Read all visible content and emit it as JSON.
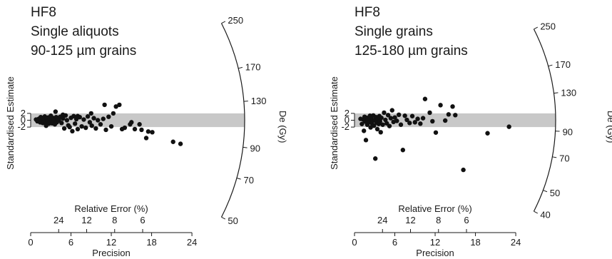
{
  "colors": {
    "band": "#c8c8c8",
    "points": "#111111",
    "axes": "#1a1a1a",
    "background": "#ffffff"
  },
  "chart_data": [
    {
      "type": "scatter",
      "subtype": "radial-plot",
      "title_lines": [
        "HF8",
        "Single aliquots",
        "90-125 µm grains"
      ],
      "ylabel": "Standardised Estimate",
      "ytick_labels": [
        "2",
        "0",
        "-2"
      ],
      "xlabel": "Precision",
      "x_ticks": [
        0,
        6,
        12,
        18,
        24
      ],
      "xlim": [
        0,
        24
      ],
      "rel_error_label": "Relative Error (%)",
      "rel_error_ticks": [
        24,
        12,
        8,
        6
      ],
      "arc_label": "De (Gy)",
      "arc_ticks": [
        50,
        70,
        90,
        130,
        170,
        250
      ],
      "arc_range": [
        50,
        250
      ],
      "band": [
        -2,
        2
      ],
      "grid": false,
      "points": [
        {
          "x": 0.8,
          "y": 0.2
        },
        {
          "x": 1.0,
          "y": -0.3
        },
        {
          "x": 1.2,
          "y": 0.4
        },
        {
          "x": 1.4,
          "y": -0.6
        },
        {
          "x": 1.5,
          "y": 0.9
        },
        {
          "x": 1.6,
          "y": -0.1
        },
        {
          "x": 1.7,
          "y": 0.3
        },
        {
          "x": 1.8,
          "y": -0.8
        },
        {
          "x": 1.9,
          "y": 0.6
        },
        {
          "x": 2.0,
          "y": -0.4
        },
        {
          "x": 2.1,
          "y": 1.1
        },
        {
          "x": 2.2,
          "y": 0.1
        },
        {
          "x": 2.3,
          "y": -0.7
        },
        {
          "x": 2.4,
          "y": 0.5
        },
        {
          "x": 2.5,
          "y": -0.2
        },
        {
          "x": 2.6,
          "y": 0.8
        },
        {
          "x": 2.7,
          "y": -1.0
        },
        {
          "x": 2.8,
          "y": 0.3
        },
        {
          "x": 2.9,
          "y": -0.5
        },
        {
          "x": 3.0,
          "y": 1.3
        },
        {
          "x": 3.1,
          "y": 0.0
        },
        {
          "x": 3.2,
          "y": -0.9
        },
        {
          "x": 3.3,
          "y": 0.7
        },
        {
          "x": 3.4,
          "y": -0.3
        },
        {
          "x": 3.5,
          "y": 0.2
        },
        {
          "x": 3.6,
          "y": -1.2
        },
        {
          "x": 3.7,
          "y": 2.5
        },
        {
          "x": 3.8,
          "y": 0.9
        },
        {
          "x": 3.9,
          "y": -0.6
        },
        {
          "x": 4.0,
          "y": 0.4
        },
        {
          "x": 4.2,
          "y": -0.1
        },
        {
          "x": 4.4,
          "y": 1.0
        },
        {
          "x": 4.6,
          "y": -0.8
        },
        {
          "x": 4.8,
          "y": 0.5
        },
        {
          "x": 5.0,
          "y": -2.4
        },
        {
          "x": 5.2,
          "y": 1.4
        },
        {
          "x": 5.4,
          "y": 0.0
        },
        {
          "x": 5.6,
          "y": -1.5
        },
        {
          "x": 5.8,
          "y": -2.0
        },
        {
          "x": 6.0,
          "y": 0.7
        },
        {
          "x": 6.2,
          "y": -3.2
        },
        {
          "x": 6.4,
          "y": 1.2
        },
        {
          "x": 6.6,
          "y": -1.0
        },
        {
          "x": 6.8,
          "y": 0.3
        },
        {
          "x": 7.0,
          "y": -2.6
        },
        {
          "x": 7.3,
          "y": 0.9
        },
        {
          "x": 7.6,
          "y": -1.8
        },
        {
          "x": 7.9,
          "y": 0.2
        },
        {
          "x": 8.2,
          "y": -2.2
        },
        {
          "x": 8.5,
          "y": 1.1
        },
        {
          "x": 8.8,
          "y": -0.6
        },
        {
          "x": 9.1,
          "y": -1.6
        },
        {
          "x": 9.4,
          "y": 0.6
        },
        {
          "x": 9.7,
          "y": -2.4
        },
        {
          "x": 10.0,
          "y": 0.0
        },
        {
          "x": 10.4,
          "y": -1.2
        },
        {
          "x": 10.8,
          "y": 0.4
        },
        {
          "x": 11.2,
          "y": -2.8
        },
        {
          "x": 11.6,
          "y": 1.0
        },
        {
          "x": 12.0,
          "y": -1.8
        },
        {
          "x": 11.0,
          "y": 4.5
        },
        {
          "x": 12.7,
          "y": 4.0
        },
        {
          "x": 13.2,
          "y": 4.5
        },
        {
          "x": 12.3,
          "y": 2.0
        },
        {
          "x": 13.6,
          "y": -2.6
        },
        {
          "x": 14.0,
          "y": -2.2
        },
        {
          "x": 14.8,
          "y": -1.2
        },
        {
          "x": 15.0,
          "y": -0.6
        },
        {
          "x": 15.5,
          "y": -2.6
        },
        {
          "x": 16.2,
          "y": -1.2
        },
        {
          "x": 16.5,
          "y": -2.8
        },
        {
          "x": 17.5,
          "y": -3.3
        },
        {
          "x": 18.1,
          "y": -3.5
        },
        {
          "x": 17.2,
          "y": -5.2
        },
        {
          "x": 21.2,
          "y": -6.3
        },
        {
          "x": 22.3,
          "y": -6.9
        },
        {
          "x": 9.0,
          "y": 2.0
        },
        {
          "x": 7.0,
          "y": 1.2
        },
        {
          "x": 4.8,
          "y": 1.6
        },
        {
          "x": 2.3,
          "y": -1.6
        }
      ]
    },
    {
      "type": "scatter",
      "subtype": "radial-plot",
      "title_lines": [
        "HF8",
        "Single grains",
        "125-180 µm grains"
      ],
      "ylabel": "Standardised Estimate",
      "ytick_labels": [
        "2",
        "0",
        "-2"
      ],
      "xlabel": "Precision",
      "x_ticks": [
        0,
        6,
        12,
        18,
        24
      ],
      "xlim": [
        0,
        24
      ],
      "rel_error_label": "Relative Error (%)",
      "rel_error_ticks": [
        24,
        12,
        8,
        6
      ],
      "arc_label": "De (Gy)",
      "arc_ticks": [
        40,
        50,
        70,
        90,
        130,
        170,
        250
      ],
      "arc_range": [
        40,
        250
      ],
      "band": [
        -2,
        2
      ],
      "grid": false,
      "points": [
        {
          "x": 0.9,
          "y": 0.4
        },
        {
          "x": 1.1,
          "y": -1.1
        },
        {
          "x": 1.3,
          "y": 0.2
        },
        {
          "x": 1.4,
          "y": -3.1
        },
        {
          "x": 1.5,
          "y": 1.0
        },
        {
          "x": 1.6,
          "y": -0.4
        },
        {
          "x": 1.7,
          "y": -5.8
        },
        {
          "x": 1.8,
          "y": 0.7
        },
        {
          "x": 1.9,
          "y": -1.3
        },
        {
          "x": 2.0,
          "y": 0.2
        },
        {
          "x": 2.2,
          "y": -0.6
        },
        {
          "x": 2.3,
          "y": 1.3
        },
        {
          "x": 2.4,
          "y": -2.1
        },
        {
          "x": 2.5,
          "y": 0.5
        },
        {
          "x": 2.6,
          "y": -0.9
        },
        {
          "x": 2.7,
          "y": -0.2
        },
        {
          "x": 2.8,
          "y": 1.4
        },
        {
          "x": 2.9,
          "y": -1.6
        },
        {
          "x": 3.0,
          "y": 0.1
        },
        {
          "x": 3.1,
          "y": -11.2
        },
        {
          "x": 3.2,
          "y": 0.9
        },
        {
          "x": 3.3,
          "y": -0.7
        },
        {
          "x": 3.4,
          "y": -2.6
        },
        {
          "x": 3.5,
          "y": 0.4
        },
        {
          "x": 3.6,
          "y": -1.1
        },
        {
          "x": 3.7,
          "y": 1.2
        },
        {
          "x": 3.8,
          "y": -0.3
        },
        {
          "x": 3.9,
          "y": -3.5
        },
        {
          "x": 4.0,
          "y": 0.7
        },
        {
          "x": 4.2,
          "y": -1.3
        },
        {
          "x": 4.4,
          "y": 2.2
        },
        {
          "x": 4.6,
          "y": 0.1
        },
        {
          "x": 4.8,
          "y": -0.9
        },
        {
          "x": 5.0,
          "y": 1.5
        },
        {
          "x": 5.2,
          "y": -1.7
        },
        {
          "x": 5.4,
          "y": 0.6
        },
        {
          "x": 5.6,
          "y": 2.9
        },
        {
          "x": 5.8,
          "y": -0.5
        },
        {
          "x": 6.0,
          "y": 0.8
        },
        {
          "x": 6.3,
          "y": -0.2
        },
        {
          "x": 6.6,
          "y": 1.6
        },
        {
          "x": 6.9,
          "y": -1.3
        },
        {
          "x": 7.2,
          "y": -8.7
        },
        {
          "x": 7.5,
          "y": 1.3
        },
        {
          "x": 7.8,
          "y": 0.1
        },
        {
          "x": 8.2,
          "y": -0.8
        },
        {
          "x": 8.6,
          "y": 1.2
        },
        {
          "x": 9.0,
          "y": -0.6
        },
        {
          "x": 9.4,
          "y": 0.4
        },
        {
          "x": 9.8,
          "y": -1.0
        },
        {
          "x": 10.2,
          "y": 0.6
        },
        {
          "x": 10.5,
          "y": 6.2
        },
        {
          "x": 11.2,
          "y": 2.2
        },
        {
          "x": 11.6,
          "y": -0.3
        },
        {
          "x": 12.1,
          "y": -3.6
        },
        {
          "x": 12.8,
          "y": 4.4
        },
        {
          "x": 13.5,
          "y": -0.1
        },
        {
          "x": 14.0,
          "y": 1.7
        },
        {
          "x": 14.6,
          "y": 4.0
        },
        {
          "x": 15.0,
          "y": 1.5
        },
        {
          "x": 16.2,
          "y": -14.5
        },
        {
          "x": 19.8,
          "y": -3.8
        },
        {
          "x": 23.0,
          "y": -1.9
        }
      ]
    }
  ]
}
